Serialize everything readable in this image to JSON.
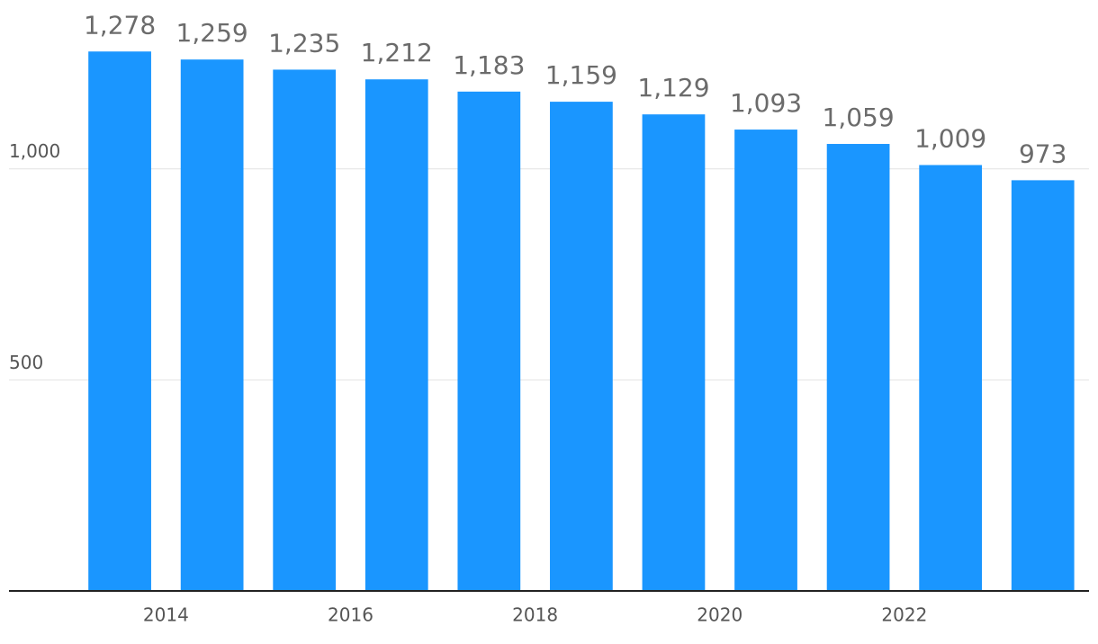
{
  "chart_data": {
    "type": "bar",
    "x": [
      2013,
      2014,
      2015,
      2016,
      2017,
      2018,
      2019,
      2020,
      2021,
      2022,
      2023
    ],
    "values": [
      1278,
      1259,
      1235,
      1212,
      1183,
      1159,
      1129,
      1093,
      1059,
      1009,
      973
    ],
    "value_labels": [
      "1,278",
      "1,259",
      "1,235",
      "1,212",
      "1,183",
      "1,159",
      "1,129",
      "1,093",
      "1,059",
      "1,009",
      "973"
    ],
    "color": "#1a96ff",
    "xlim": [
      2012.3,
      2024
    ],
    "xticks": [
      2014,
      2016,
      2018,
      2020,
      2022
    ],
    "ylim": [
      0,
      1400
    ],
    "yticks": [
      500,
      {
        "value": 1000,
        "label": "1,000"
      }
    ],
    "grid": true
  }
}
